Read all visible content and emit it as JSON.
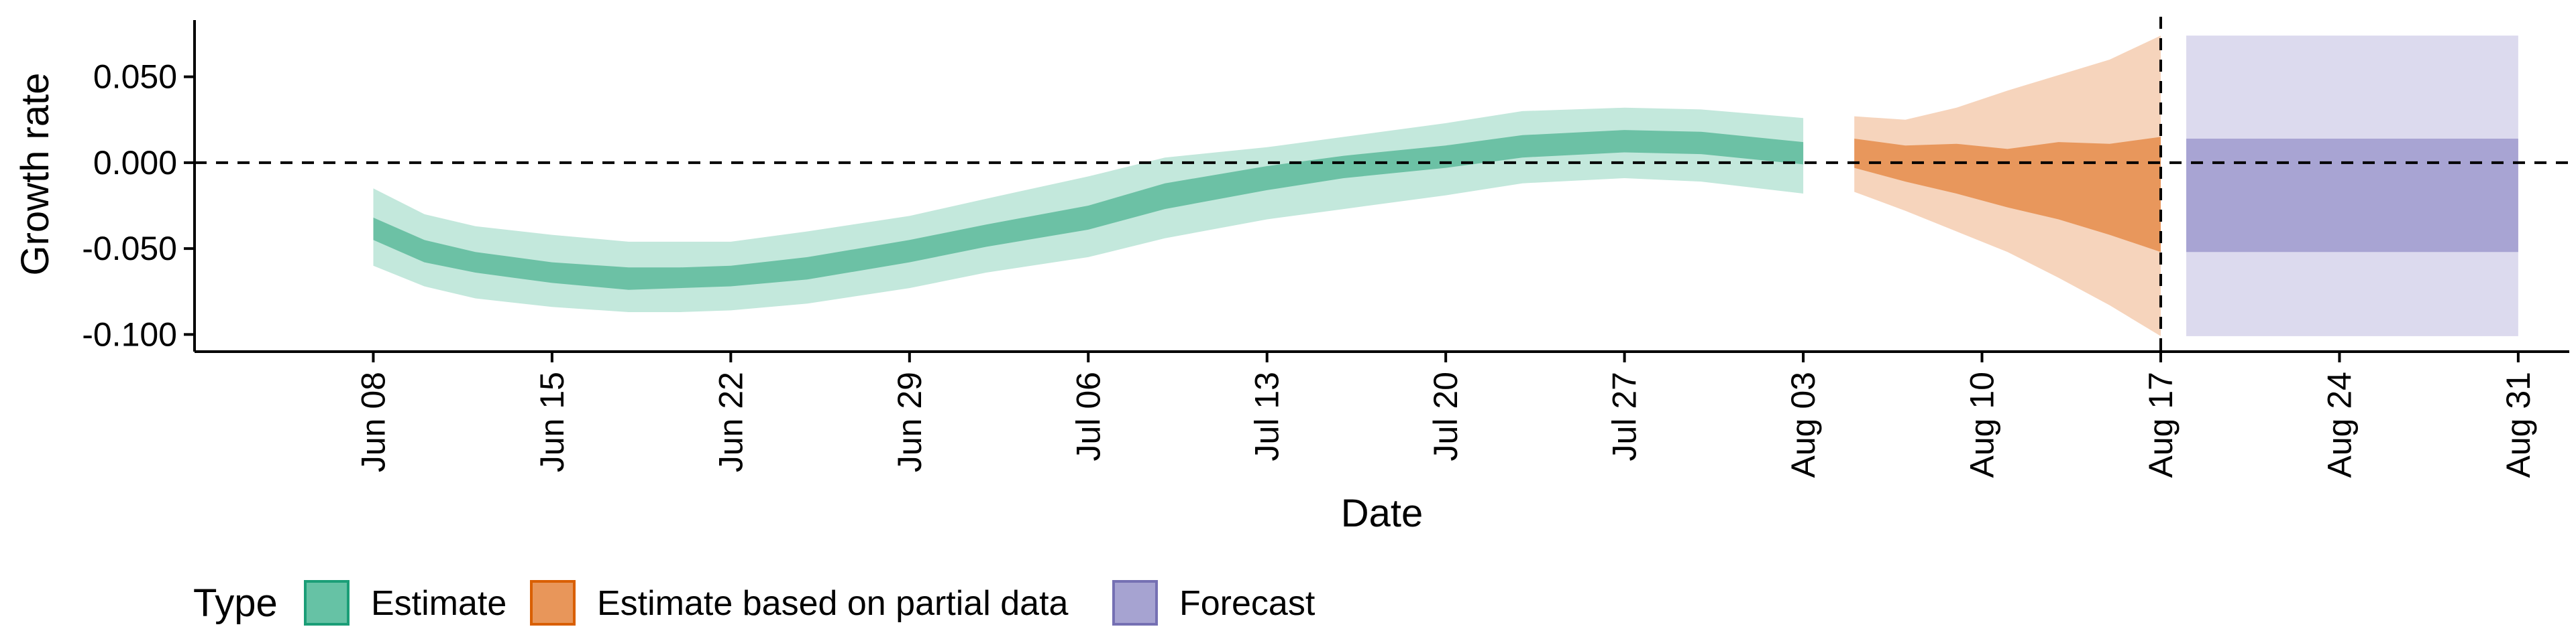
{
  "chart_data": {
    "type": "area",
    "xlabel": "Date",
    "ylabel": "Growth rate",
    "ylim": [
      -0.11,
      0.083
    ],
    "xlim": [
      "2020-06-01",
      "2020-09-02"
    ],
    "y_ticks": [
      {
        "value": 0.05,
        "label": "0.050"
      },
      {
        "value": 0.0,
        "label": "0.000"
      },
      {
        "value": -0.05,
        "label": "-0.050"
      },
      {
        "value": -0.1,
        "label": "-0.100"
      }
    ],
    "x_ticks": [
      {
        "date": "2020-06-08",
        "label": "Jun 08"
      },
      {
        "date": "2020-06-15",
        "label": "Jun 15"
      },
      {
        "date": "2020-06-22",
        "label": "Jun 22"
      },
      {
        "date": "2020-06-29",
        "label": "Jun 29"
      },
      {
        "date": "2020-07-06",
        "label": "Jul 06"
      },
      {
        "date": "2020-07-13",
        "label": "Jul 13"
      },
      {
        "date": "2020-07-20",
        "label": "Jul 20"
      },
      {
        "date": "2020-07-27",
        "label": "Jul 27"
      },
      {
        "date": "2020-08-03",
        "label": "Aug 03"
      },
      {
        "date": "2020-08-10",
        "label": "Aug 10"
      },
      {
        "date": "2020-08-17",
        "label": "Aug 17"
      },
      {
        "date": "2020-08-24",
        "label": "Aug 24"
      },
      {
        "date": "2020-08-31",
        "label": "Aug 31"
      }
    ],
    "reference_lines": [
      {
        "orientation": "horizontal",
        "value": 0.0,
        "style": "dashed"
      },
      {
        "orientation": "vertical",
        "date": "2020-08-17",
        "style": "dashed"
      }
    ],
    "grid": false,
    "legend": {
      "title": "Type",
      "position": "bottom",
      "entries": [
        {
          "label": "Estimate",
          "fill": "#66c2a5",
          "stroke": "#1b9e77"
        },
        {
          "label": "Estimate based on partial data",
          "fill": "#e8965a",
          "stroke": "#d95f02"
        },
        {
          "label": "Forecast",
          "fill": "#a6a3d1",
          "stroke": "#7570b3"
        }
      ]
    },
    "series": [
      {
        "name": "Estimate",
        "color_outer": "#c3e8dc",
        "color_inner": "#6cc1a5",
        "x": [
          "2020-06-08",
          "2020-06-10",
          "2020-06-12",
          "2020-06-15",
          "2020-06-18",
          "2020-06-20",
          "2020-06-22",
          "2020-06-25",
          "2020-06-29",
          "2020-07-02",
          "2020-07-06",
          "2020-07-09",
          "2020-07-13",
          "2020-07-16",
          "2020-07-20",
          "2020-07-23",
          "2020-07-27",
          "2020-07-30",
          "2020-08-03"
        ],
        "upper90": [
          -0.015,
          -0.03,
          -0.037,
          -0.042,
          -0.046,
          -0.046,
          -0.046,
          -0.04,
          -0.031,
          -0.021,
          -0.008,
          0.003,
          0.009,
          0.015,
          0.023,
          0.03,
          0.032,
          0.031,
          0.026
        ],
        "upper50": [
          -0.032,
          -0.045,
          -0.052,
          -0.058,
          -0.061,
          -0.061,
          -0.06,
          -0.055,
          -0.045,
          -0.036,
          -0.025,
          -0.012,
          -0.002,
          0.004,
          0.01,
          0.016,
          0.019,
          0.018,
          0.012
        ],
        "lower50": [
          -0.045,
          -0.058,
          -0.064,
          -0.07,
          -0.074,
          -0.073,
          -0.072,
          -0.068,
          -0.058,
          -0.049,
          -0.039,
          -0.027,
          -0.016,
          -0.009,
          -0.003,
          0.003,
          0.006,
          0.005,
          -0.001
        ],
        "lower90": [
          -0.06,
          -0.072,
          -0.079,
          -0.084,
          -0.087,
          -0.087,
          -0.086,
          -0.082,
          -0.073,
          -0.064,
          -0.055,
          -0.044,
          -0.033,
          -0.027,
          -0.019,
          -0.012,
          -0.009,
          -0.011,
          -0.018
        ]
      },
      {
        "name": "Estimate based on partial data",
        "color_outer": "#f6d4bc",
        "color_inner": "#e8975c",
        "x": [
          "2020-08-05",
          "2020-08-07",
          "2020-08-09",
          "2020-08-11",
          "2020-08-13",
          "2020-08-15",
          "2020-08-17"
        ],
        "upper90": [
          0.027,
          0.025,
          0.032,
          0.042,
          0.051,
          0.06,
          0.074
        ],
        "upper50": [
          0.014,
          0.01,
          0.011,
          0.008,
          0.012,
          0.011,
          0.015
        ],
        "lower50": [
          -0.003,
          -0.011,
          -0.018,
          -0.026,
          -0.033,
          -0.042,
          -0.052
        ],
        "lower90": [
          -0.017,
          -0.028,
          -0.04,
          -0.052,
          -0.067,
          -0.083,
          -0.101
        ]
      },
      {
        "name": "Forecast",
        "color_outer": "#dcdaee",
        "color_inner": "#a8a4d3",
        "x": [
          "2020-08-18",
          "2020-08-31"
        ],
        "upper90": [
          0.074,
          0.074
        ],
        "upper50": [
          0.014,
          0.014
        ],
        "lower50": [
          -0.052,
          -0.052
        ],
        "lower90": [
          -0.101,
          -0.101
        ]
      }
    ]
  }
}
